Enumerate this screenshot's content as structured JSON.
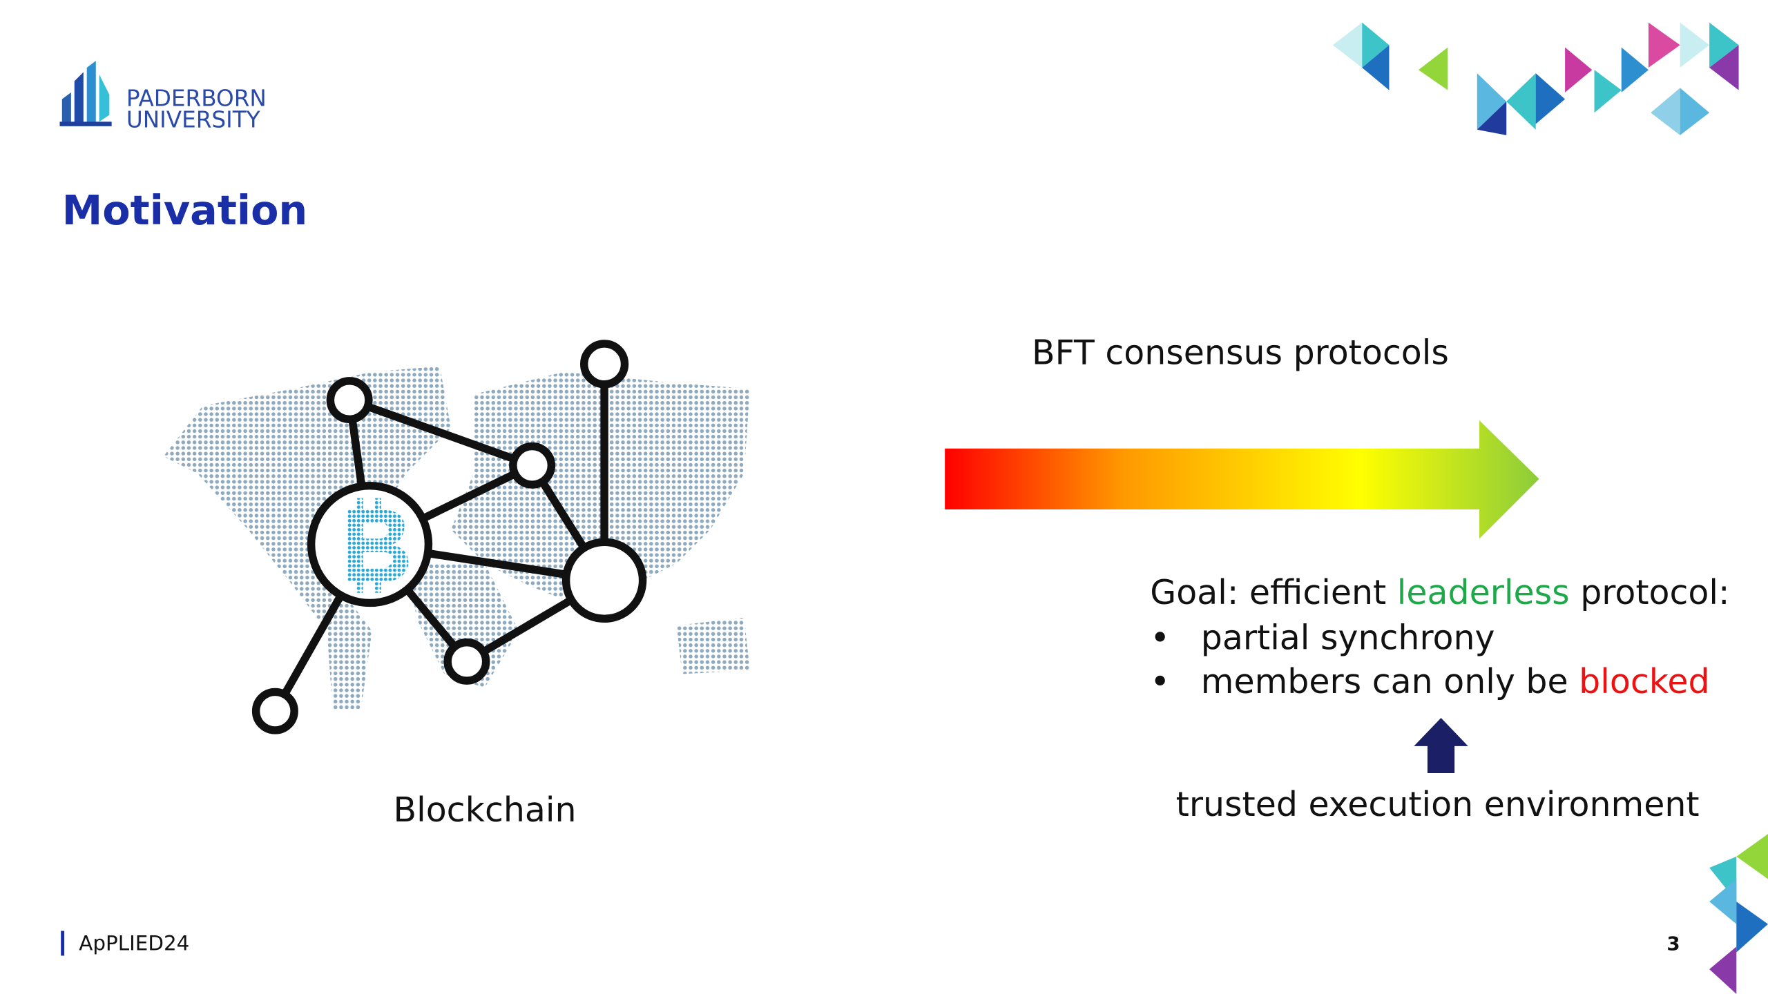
{
  "logo": {
    "line1": "PADERBORN",
    "line2": "UNIVERSITY"
  },
  "title": "Motivation",
  "left": {
    "caption": "Blockchain"
  },
  "right": {
    "arrow_label": "BFT consensus protocols",
    "goal": {
      "prefix": "Goal: efficient ",
      "highlight": "leaderless",
      "suffix": " protocol:"
    },
    "bullets": [
      {
        "marker": "•",
        "text": "partial synchrony"
      },
      {
        "marker": "•",
        "text": "members can only be ",
        "highlight": "blocked"
      }
    ],
    "source": "trusted execution environment"
  },
  "footer": {
    "event": "ApPLIED24",
    "page": "3"
  }
}
